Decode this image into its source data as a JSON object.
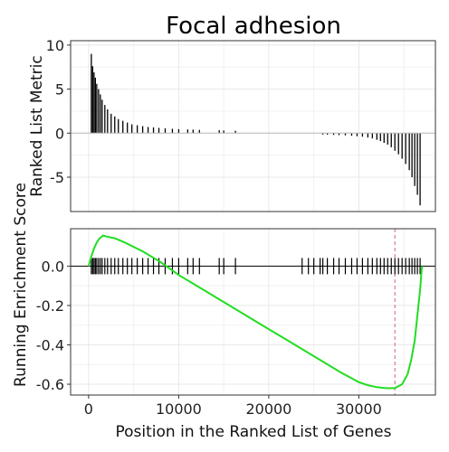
{
  "chart_data": {
    "type": "line",
    "title": "Focal adhesion",
    "xlabel": "Position in the Ranked List of Genes",
    "xlim": [
      -2000,
      38500
    ],
    "xticks": [
      0,
      10000,
      20000,
      30000
    ],
    "xtick_labels": [
      "0",
      "10000",
      "20000",
      "30000"
    ],
    "panels": [
      {
        "name": "metric",
        "type": "bar",
        "ylabel": "Ranked List Metric",
        "ylim": [
          -8.9,
          10.5
        ],
        "yticks": [
          10,
          5,
          0,
          -5
        ],
        "ytick_labels": [
          "10",
          "5",
          "0",
          "-5"
        ],
        "hits": [
          {
            "x": 300,
            "y": 9.0
          },
          {
            "x": 450,
            "y": 7.6
          },
          {
            "x": 600,
            "y": 6.9
          },
          {
            "x": 750,
            "y": 6.3
          },
          {
            "x": 900,
            "y": 5.6
          },
          {
            "x": 1100,
            "y": 5.0
          },
          {
            "x": 1300,
            "y": 4.4
          },
          {
            "x": 1500,
            "y": 3.8
          },
          {
            "x": 1800,
            "y": 3.2
          },
          {
            "x": 2100,
            "y": 2.7
          },
          {
            "x": 2500,
            "y": 2.2
          },
          {
            "x": 2900,
            "y": 1.9
          },
          {
            "x": 3300,
            "y": 1.6
          },
          {
            "x": 3800,
            "y": 1.4
          },
          {
            "x": 4300,
            "y": 1.2
          },
          {
            "x": 4800,
            "y": 1.0
          },
          {
            "x": 5400,
            "y": 0.9
          },
          {
            "x": 6000,
            "y": 0.8
          },
          {
            "x": 6600,
            "y": 0.7
          },
          {
            "x": 7200,
            "y": 0.65
          },
          {
            "x": 7800,
            "y": 0.6
          },
          {
            "x": 8500,
            "y": 0.55
          },
          {
            "x": 9300,
            "y": 0.5
          },
          {
            "x": 10000,
            "y": 0.45
          },
          {
            "x": 11000,
            "y": 0.42
          },
          {
            "x": 11600,
            "y": 0.4
          },
          {
            "x": 12300,
            "y": 0.37
          },
          {
            "x": 14500,
            "y": 0.33
          },
          {
            "x": 15000,
            "y": 0.3
          },
          {
            "x": 16300,
            "y": 0.27
          },
          {
            "x": 26000,
            "y": -0.15
          },
          {
            "x": 26500,
            "y": -0.17
          },
          {
            "x": 27200,
            "y": -0.2
          },
          {
            "x": 27800,
            "y": -0.22
          },
          {
            "x": 28500,
            "y": -0.25
          },
          {
            "x": 29200,
            "y": -0.3
          },
          {
            "x": 29800,
            "y": -0.35
          },
          {
            "x": 30400,
            "y": -0.4
          },
          {
            "x": 31000,
            "y": -0.5
          },
          {
            "x": 31500,
            "y": -0.6
          },
          {
            "x": 32000,
            "y": -0.75
          },
          {
            "x": 32400,
            "y": -0.9
          },
          {
            "x": 32800,
            "y": -1.1
          },
          {
            "x": 33200,
            "y": -1.3
          },
          {
            "x": 33600,
            "y": -1.6
          },
          {
            "x": 34000,
            "y": -2.0
          },
          {
            "x": 34400,
            "y": -2.4
          },
          {
            "x": 34800,
            "y": -2.9
          },
          {
            "x": 35200,
            "y": -3.5
          },
          {
            "x": 35600,
            "y": -4.2
          },
          {
            "x": 35900,
            "y": -5.0
          },
          {
            "x": 36200,
            "y": -6.0
          },
          {
            "x": 36500,
            "y": -7.0
          },
          {
            "x": 36800,
            "y": -8.2
          }
        ]
      },
      {
        "name": "enrichment",
        "type": "line",
        "ylabel": "Running Enrichment Score",
        "ylim": [
          -0.655,
          0.19
        ],
        "yticks": [
          0.0,
          -0.2,
          -0.4,
          -0.6
        ],
        "ytick_labels": [
          "0.0",
          "-0.2",
          "-0.4",
          "-0.6"
        ],
        "series": [
          {
            "color": "#22dd22",
            "x": [
              0,
              300,
              600,
              900,
              1200,
              1600,
              2000,
              3000,
              4000,
              6000,
              8000,
              10000,
              12000,
              14000,
              16000,
              18000,
              20000,
              22000,
              24000,
              26000,
              28000,
              29000,
              30000,
              31000,
              32000,
              33000,
              34000,
              34800,
              35400,
              35800,
              36200,
              36500,
              36800,
              37000
            ],
            "y": [
              0.0,
              0.05,
              0.09,
              0.12,
              0.14,
              0.155,
              0.15,
              0.14,
              0.12,
              0.075,
              0.02,
              -0.045,
              -0.1,
              -0.155,
              -0.21,
              -0.265,
              -0.32,
              -0.375,
              -0.43,
              -0.485,
              -0.54,
              -0.565,
              -0.59,
              -0.605,
              -0.615,
              -0.62,
              -0.62,
              -0.6,
              -0.55,
              -0.48,
              -0.38,
              -0.25,
              -0.12,
              0.0
            ]
          }
        ],
        "hit_positions": [
          300,
          450,
          600,
          750,
          900,
          1100,
          1300,
          1500,
          1800,
          2100,
          2500,
          2900,
          3300,
          3800,
          4300,
          4800,
          5400,
          6000,
          6600,
          7200,
          7800,
          8500,
          9300,
          10000,
          11000,
          11600,
          12300,
          14500,
          15000,
          16300,
          23700,
          24400,
          25000,
          25700,
          26000,
          26500,
          27200,
          27800,
          28500,
          29200,
          29800,
          30400,
          31000,
          31500,
          32000,
          32400,
          32800,
          33200,
          33600,
          34000,
          34400,
          34800,
          35200,
          35600,
          35900,
          36200,
          36500,
          36800
        ],
        "peak_position": 34000,
        "peak_line_color": "#cc6677"
      }
    ]
  }
}
